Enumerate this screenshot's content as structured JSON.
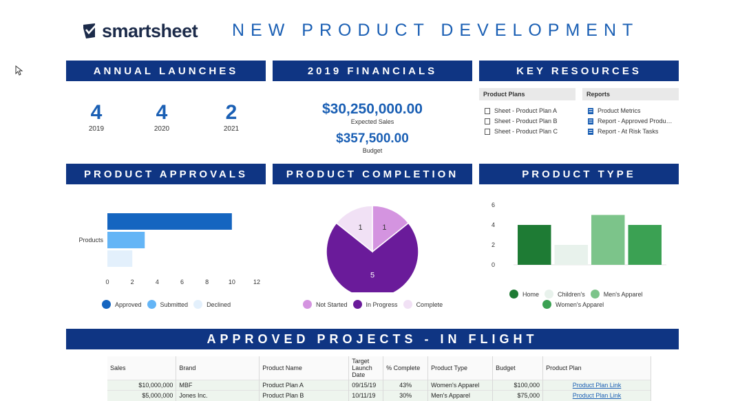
{
  "logo": {
    "text": "smartsheet"
  },
  "page_title": "NEW PRODUCT DEVELOPMENT",
  "sections": {
    "annual_launches": "ANNUAL LAUNCHES",
    "financials": "2019 FINANCIALS",
    "key_resources": "KEY RESOURCES",
    "product_approvals": "PRODUCT APPROVALS",
    "product_completion": "PRODUCT COMPLETION",
    "product_type": "PRODUCT TYPE",
    "approved_projects": "APPROVED PROJECTS - IN  FLIGHT"
  },
  "launches": [
    {
      "count": "4",
      "year": "2019"
    },
    {
      "count": "4",
      "year": "2020"
    },
    {
      "count": "2",
      "year": "2021"
    }
  ],
  "financials": {
    "expected_sales": "$30,250,000.00",
    "expected_sales_label": "Expected Sales",
    "budget": "$357,500.00",
    "budget_label": "Budget"
  },
  "resources": {
    "plans": {
      "title": "Product Plans",
      "items": [
        "Sheet - Product Plan A",
        "Sheet - Product Plan B",
        "Sheet - Product Plan C"
      ]
    },
    "reports": {
      "title": "Reports",
      "items": [
        "Product Metrics",
        "Report - Approved Produ…",
        "Report - At Risk Tasks"
      ]
    }
  },
  "colors": {
    "banner": "#0f3583",
    "accent": "#1a5fb4",
    "approved": "#1565c0",
    "submitted": "#64b5f6",
    "declined": "#e3f0fc",
    "not_started": "#d494e0",
    "in_progress": "#6a1b9a",
    "complete": "#f1e1f5",
    "home": "#1e7b34",
    "childrens": "#e8f2ec",
    "mens": "#7cc48a",
    "womens": "#3ba153"
  },
  "chart_data": [
    {
      "type": "bar",
      "orientation": "horizontal",
      "categories": [
        "Products"
      ],
      "series": [
        {
          "name": "Approved",
          "values": [
            10
          ]
        },
        {
          "name": "Submitted",
          "values": [
            3
          ]
        },
        {
          "name": "Declined",
          "values": [
            2
          ]
        }
      ],
      "xlim": [
        0,
        12
      ],
      "xticks": [
        "0",
        "2",
        "4",
        "6",
        "8",
        "10",
        "12"
      ],
      "legend": "bottom"
    },
    {
      "type": "pie",
      "slices": [
        {
          "name": "Not Started",
          "value": 1
        },
        {
          "name": "In Progress",
          "value": 5
        },
        {
          "name": "Complete",
          "value": 1
        }
      ],
      "legend": "bottom"
    },
    {
      "type": "bar",
      "categories": [
        "Home",
        "Children's",
        "Men's Apparel",
        "Women's Apparel"
      ],
      "values": [
        4,
        2,
        5,
        4
      ],
      "ylim": [
        0,
        6
      ],
      "yticks": [
        "0",
        "2",
        "4",
        "6"
      ],
      "legend": "bottom"
    }
  ],
  "table": {
    "headers": [
      "Sales",
      "Brand",
      "Product Name",
      "Target Launch Date",
      "% Complete",
      "Product Type",
      "Budget",
      "Product Plan"
    ],
    "rows": [
      [
        "$10,000,000",
        "MBF",
        "Product Plan A",
        "09/15/19",
        "43%",
        "Women's Apparel",
        "$100,000",
        "Product Plan Link"
      ],
      [
        "$5,000,000",
        "Jones Inc.",
        "Product Plan B",
        "10/11/19",
        "30%",
        "Men's Apparel",
        "$75,000",
        "Product Plan Link"
      ]
    ]
  }
}
